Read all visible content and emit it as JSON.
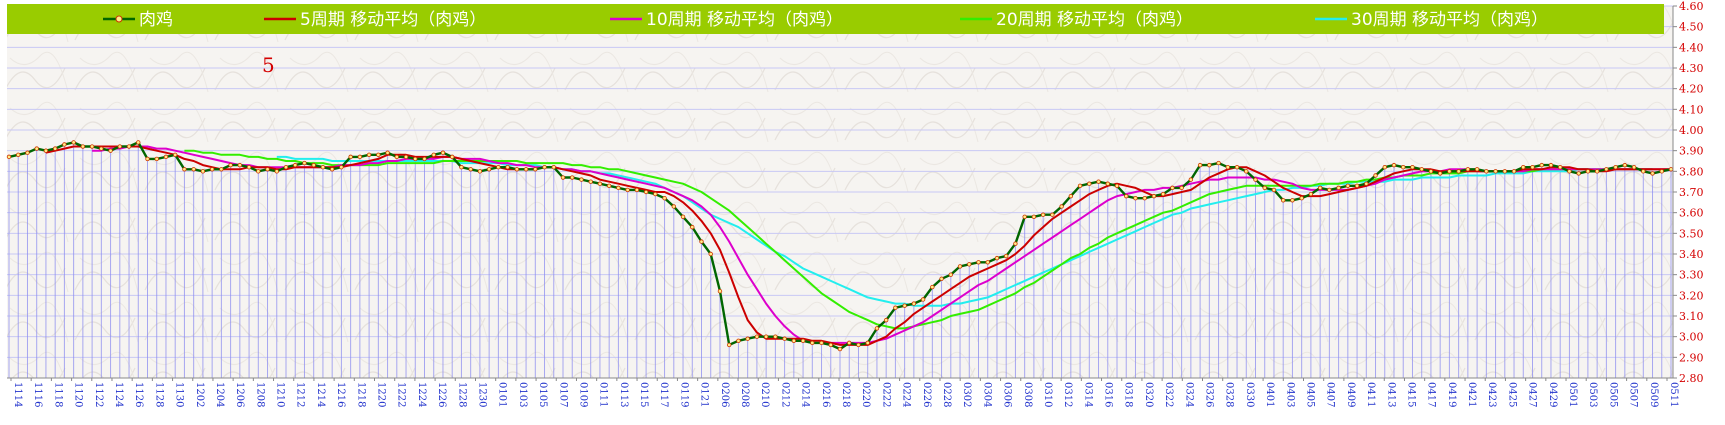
{
  "chart_data": {
    "type": "line",
    "ylim": [
      2.8,
      4.6
    ],
    "yticks": [
      "2.80",
      "2.90",
      "3.00",
      "3.10",
      "3.20",
      "3.30",
      "3.40",
      "3.50",
      "3.60",
      "3.70",
      "3.80",
      "3.90",
      "4.00",
      "4.10",
      "4.20",
      "4.30",
      "4.40",
      "4.50",
      "4.60"
    ],
    "xtick_labels": [
      "1114",
      "1116",
      "1118",
      "1120",
      "1122",
      "1124",
      "1126",
      "1128",
      "1130",
      "1202",
      "1204",
      "1206",
      "1208",
      "1210",
      "1212",
      "1214",
      "1216",
      "1218",
      "1220",
      "1222",
      "1224",
      "1226",
      "1228",
      "1230",
      "0101",
      "0103",
      "0105",
      "0107",
      "0109",
      "0111",
      "0113",
      "0115",
      "0117",
      "0119",
      "0121",
      "0206",
      "0208",
      "0210",
      "0212",
      "0214",
      "0216",
      "0218",
      "0220",
      "0222",
      "0224",
      "0226",
      "0228",
      "0302",
      "0304",
      "0306",
      "0308",
      "0310",
      "0312",
      "0314",
      "0316",
      "0318",
      "0320",
      "0322",
      "0324",
      "0326",
      "0328",
      "0330",
      "0401",
      "0403",
      "0405",
      "0407",
      "0409",
      "0411",
      "0413",
      "0415",
      "0417",
      "0419",
      "0421",
      "0423",
      "0425",
      "0427",
      "0429",
      "0501",
      "0503",
      "0505",
      "0507",
      "0509",
      "0511"
    ],
    "annotation": "5",
    "colors": {
      "legend_bg": "#99cc00",
      "band": "#8c8cf0",
      "grid": "#c8c8f5",
      "axis_text": "#d40000",
      "xtick_text": "#2233cc"
    },
    "series": [
      {
        "name": "肉鸡",
        "color": "#006600",
        "values": [
          3.87,
          3.88,
          3.89,
          3.91,
          3.9,
          3.91,
          3.93,
          3.94,
          3.92,
          3.92,
          3.91,
          3.9,
          3.92,
          3.92,
          3.94,
          3.86,
          3.86,
          3.87,
          3.88,
          3.81,
          3.81,
          3.8,
          3.81,
          3.81,
          3.83,
          3.83,
          3.82,
          3.8,
          3.81,
          3.8,
          3.82,
          3.83,
          3.84,
          3.83,
          3.82,
          3.81,
          3.82,
          3.87,
          3.87,
          3.88,
          3.88,
          3.89,
          3.87,
          3.87,
          3.86,
          3.86,
          3.88,
          3.89,
          3.87,
          3.82,
          3.81,
          3.8,
          3.81,
          3.82,
          3.82,
          3.81,
          3.81,
          3.81,
          3.82,
          3.82,
          3.77,
          3.77,
          3.76,
          3.75,
          3.74,
          3.73,
          3.72,
          3.71,
          3.71,
          3.7,
          3.69,
          3.67,
          3.63,
          3.58,
          3.53,
          3.46,
          3.4,
          3.22,
          2.96,
          2.98,
          2.99,
          3.0,
          3.0,
          3.0,
          2.99,
          2.98,
          2.98,
          2.97,
          2.97,
          2.96,
          2.94,
          2.97,
          2.96,
          2.97,
          3.04,
          3.08,
          3.14,
          3.15,
          3.16,
          3.18,
          3.24,
          3.28,
          3.3,
          3.34,
          3.35,
          3.36,
          3.36,
          3.38,
          3.39,
          3.45,
          3.58,
          3.58,
          3.59,
          3.59,
          3.63,
          3.68,
          3.73,
          3.74,
          3.75,
          3.74,
          3.73,
          3.68,
          3.67,
          3.67,
          3.68,
          3.69,
          3.72,
          3.72,
          3.76,
          3.83,
          3.83,
          3.84,
          3.82,
          3.82,
          3.8,
          3.76,
          3.72,
          3.71,
          3.66,
          3.66,
          3.67,
          3.69,
          3.72,
          3.71,
          3.72,
          3.73,
          3.73,
          3.74,
          3.78,
          3.82,
          3.83,
          3.82,
          3.82,
          3.81,
          3.8,
          3.79,
          3.8,
          3.8,
          3.81,
          3.81,
          3.8,
          3.8,
          3.8,
          3.8,
          3.82,
          3.82,
          3.83,
          3.83,
          3.82,
          3.8,
          3.79,
          3.8,
          3.8,
          3.81,
          3.82,
          3.83,
          3.82,
          3.8,
          3.79,
          3.8,
          3.81
        ]
      },
      {
        "name": "5周期 移动平均（肉鸡）",
        "color": "#cc0000",
        "values": [
          null,
          null,
          null,
          null,
          3.89,
          3.9,
          3.91,
          3.92,
          3.92,
          3.92,
          3.92,
          3.92,
          3.92,
          3.92,
          3.92,
          3.91,
          3.9,
          3.89,
          3.88,
          3.86,
          3.85,
          3.83,
          3.82,
          3.81,
          3.81,
          3.81,
          3.82,
          3.82,
          3.82,
          3.81,
          3.81,
          3.82,
          3.82,
          3.82,
          3.82,
          3.82,
          3.82,
          3.83,
          3.84,
          3.85,
          3.86,
          3.88,
          3.88,
          3.88,
          3.87,
          3.87,
          3.87,
          3.87,
          3.87,
          3.86,
          3.85,
          3.84,
          3.83,
          3.82,
          3.81,
          3.81,
          3.81,
          3.81,
          3.82,
          3.82,
          3.81,
          3.8,
          3.79,
          3.78,
          3.76,
          3.75,
          3.74,
          3.73,
          3.72,
          3.71,
          3.7,
          3.7,
          3.68,
          3.65,
          3.61,
          3.56,
          3.5,
          3.42,
          3.31,
          3.19,
          3.08,
          3.02,
          2.99,
          2.99,
          2.99,
          2.99,
          2.99,
          2.98,
          2.98,
          2.97,
          2.96,
          2.96,
          2.96,
          2.96,
          2.98,
          3.0,
          3.04,
          3.07,
          3.11,
          3.14,
          3.17,
          3.2,
          3.23,
          3.26,
          3.29,
          3.31,
          3.33,
          3.35,
          3.37,
          3.4,
          3.44,
          3.49,
          3.53,
          3.57,
          3.6,
          3.63,
          3.66,
          3.69,
          3.71,
          3.73,
          3.74,
          3.73,
          3.72,
          3.7,
          3.68,
          3.68,
          3.69,
          3.7,
          3.71,
          3.74,
          3.77,
          3.79,
          3.81,
          3.82,
          3.82,
          3.8,
          3.78,
          3.75,
          3.72,
          3.7,
          3.68,
          3.68,
          3.68,
          3.69,
          3.7,
          3.71,
          3.72,
          3.73,
          3.75,
          3.77,
          3.79,
          3.8,
          3.81,
          3.81,
          3.81,
          3.8,
          3.8,
          3.8,
          3.8,
          3.8,
          3.8,
          3.8,
          3.8,
          3.8,
          3.81,
          3.81,
          3.81,
          3.82,
          3.82,
          3.82,
          3.81,
          3.81,
          3.8,
          3.8,
          3.81,
          3.81,
          3.81,
          3.81,
          3.81,
          3.81,
          3.81
        ]
      },
      {
        "name": "10周期 移动平均（肉鸡）",
        "color": "#dd00cc",
        "values": [
          null,
          null,
          null,
          null,
          null,
          null,
          null,
          null,
          null,
          3.9,
          3.9,
          3.91,
          3.91,
          3.92,
          3.92,
          3.92,
          3.91,
          3.91,
          3.9,
          3.89,
          3.88,
          3.87,
          3.86,
          3.85,
          3.84,
          3.83,
          3.83,
          3.82,
          3.82,
          3.82,
          3.82,
          3.82,
          3.82,
          3.82,
          3.82,
          3.82,
          3.83,
          3.83,
          3.83,
          3.84,
          3.84,
          3.85,
          3.85,
          3.86,
          3.86,
          3.86,
          3.86,
          3.87,
          3.87,
          3.86,
          3.86,
          3.86,
          3.85,
          3.84,
          3.84,
          3.83,
          3.83,
          3.82,
          3.82,
          3.82,
          3.81,
          3.81,
          3.8,
          3.8,
          3.79,
          3.78,
          3.77,
          3.76,
          3.75,
          3.74,
          3.73,
          3.72,
          3.7,
          3.68,
          3.66,
          3.63,
          3.59,
          3.53,
          3.46,
          3.38,
          3.3,
          3.23,
          3.16,
          3.1,
          3.05,
          3.01,
          2.98,
          2.97,
          2.97,
          2.97,
          2.97,
          2.97,
          2.97,
          2.97,
          2.98,
          2.99,
          3.01,
          3.03,
          3.05,
          3.07,
          3.1,
          3.13,
          3.16,
          3.19,
          3.22,
          3.25,
          3.27,
          3.3,
          3.33,
          3.36,
          3.39,
          3.42,
          3.45,
          3.48,
          3.51,
          3.54,
          3.57,
          3.6,
          3.63,
          3.66,
          3.68,
          3.69,
          3.7,
          3.71,
          3.71,
          3.72,
          3.72,
          3.73,
          3.74,
          3.75,
          3.76,
          3.76,
          3.77,
          3.77,
          3.77,
          3.77,
          3.76,
          3.76,
          3.75,
          3.74,
          3.72,
          3.71,
          3.71,
          3.71,
          3.71,
          3.71,
          3.72,
          3.73,
          3.74,
          3.76,
          3.77,
          3.78,
          3.79,
          3.8,
          3.8,
          3.8,
          3.81,
          3.81,
          3.81,
          3.8,
          3.8,
          3.8,
          3.8,
          3.8,
          3.8,
          3.81,
          3.81,
          3.81,
          3.81,
          3.81,
          3.81,
          3.81,
          3.81,
          3.81,
          3.81,
          3.81,
          3.81,
          3.81,
          3.81,
          3.81,
          3.81
        ]
      },
      {
        "name": "20周期 移动平均（肉鸡）",
        "color": "#33ee00",
        "values": [
          null,
          null,
          null,
          null,
          null,
          null,
          null,
          null,
          null,
          null,
          null,
          null,
          null,
          null,
          null,
          null,
          null,
          null,
          null,
          3.9,
          3.9,
          3.89,
          3.89,
          3.88,
          3.88,
          3.88,
          3.87,
          3.87,
          3.86,
          3.86,
          3.85,
          3.85,
          3.84,
          3.84,
          3.84,
          3.83,
          3.83,
          3.83,
          3.83,
          3.83,
          3.83,
          3.84,
          3.84,
          3.84,
          3.84,
          3.84,
          3.84,
          3.85,
          3.85,
          3.85,
          3.85,
          3.85,
          3.85,
          3.85,
          3.85,
          3.85,
          3.84,
          3.84,
          3.84,
          3.84,
          3.84,
          3.83,
          3.83,
          3.82,
          3.82,
          3.81,
          3.81,
          3.8,
          3.79,
          3.78,
          3.77,
          3.76,
          3.75,
          3.74,
          3.72,
          3.7,
          3.67,
          3.64,
          3.61,
          3.57,
          3.53,
          3.49,
          3.45,
          3.41,
          3.37,
          3.33,
          3.29,
          3.25,
          3.21,
          3.18,
          3.15,
          3.12,
          3.1,
          3.08,
          3.06,
          3.05,
          3.04,
          3.04,
          3.05,
          3.06,
          3.07,
          3.08,
          3.1,
          3.11,
          3.12,
          3.13,
          3.15,
          3.17,
          3.19,
          3.21,
          3.24,
          3.26,
          3.29,
          3.32,
          3.35,
          3.38,
          3.4,
          3.43,
          3.45,
          3.48,
          3.5,
          3.52,
          3.54,
          3.56,
          3.58,
          3.6,
          3.61,
          3.63,
          3.65,
          3.67,
          3.69,
          3.7,
          3.71,
          3.72,
          3.73,
          3.73,
          3.73,
          3.73,
          3.73,
          3.73,
          3.73,
          3.73,
          3.74,
          3.74,
          3.74,
          3.75,
          3.75,
          3.76,
          3.76,
          3.77,
          3.77,
          3.78,
          3.78,
          3.78,
          3.79,
          3.79,
          3.79,
          3.79,
          3.8,
          3.8,
          3.8,
          3.8,
          3.8,
          3.8,
          3.8,
          3.8,
          3.81,
          3.81,
          3.81,
          3.81,
          3.81,
          3.81,
          3.81,
          3.81,
          3.81,
          3.81,
          3.81,
          3.81,
          3.81
        ]
      },
      {
        "name": "30周期 移动平均（肉鸡）",
        "color": "#22eeee",
        "values": [
          null,
          null,
          null,
          null,
          null,
          null,
          null,
          null,
          null,
          null,
          null,
          null,
          null,
          null,
          null,
          null,
          null,
          null,
          null,
          null,
          null,
          null,
          null,
          null,
          null,
          null,
          null,
          null,
          null,
          3.87,
          3.87,
          3.86,
          3.86,
          3.86,
          3.86,
          3.85,
          3.85,
          3.85,
          3.85,
          3.85,
          3.85,
          3.85,
          3.85,
          3.85,
          3.85,
          3.85,
          3.85,
          3.85,
          3.85,
          3.84,
          3.84,
          3.84,
          3.84,
          3.84,
          3.83,
          3.83,
          3.83,
          3.83,
          3.82,
          3.82,
          3.81,
          3.81,
          3.8,
          3.8,
          3.79,
          3.79,
          3.78,
          3.77,
          3.76,
          3.75,
          3.74,
          3.72,
          3.7,
          3.68,
          3.65,
          3.62,
          3.59,
          3.57,
          3.55,
          3.53,
          3.5,
          3.47,
          3.44,
          3.41,
          3.39,
          3.36,
          3.33,
          3.31,
          3.29,
          3.27,
          3.25,
          3.23,
          3.21,
          3.19,
          3.18,
          3.17,
          3.16,
          3.16,
          3.15,
          3.15,
          3.15,
          3.15,
          3.16,
          3.16,
          3.17,
          3.18,
          3.19,
          3.21,
          3.23,
          3.25,
          3.27,
          3.29,
          3.31,
          3.33,
          3.35,
          3.37,
          3.39,
          3.41,
          3.43,
          3.45,
          3.47,
          3.49,
          3.51,
          3.53,
          3.55,
          3.57,
          3.59,
          3.6,
          3.62,
          3.63,
          3.64,
          3.65,
          3.66,
          3.67,
          3.68,
          3.69,
          3.7,
          3.71,
          3.71,
          3.72,
          3.72,
          3.73,
          3.73,
          3.74,
          3.74,
          3.74,
          3.75,
          3.75,
          3.75,
          3.75,
          3.76,
          3.76,
          3.76,
          3.77,
          3.77,
          3.77,
          3.77,
          3.78,
          3.78,
          3.78,
          3.78,
          3.79,
          3.79,
          3.79,
          3.79,
          3.8,
          3.8,
          3.8,
          3.8,
          3.8,
          3.81,
          3.81,
          3.81,
          3.81,
          3.81,
          3.81,
          3.81,
          3.81,
          3.81
        ]
      }
    ]
  }
}
